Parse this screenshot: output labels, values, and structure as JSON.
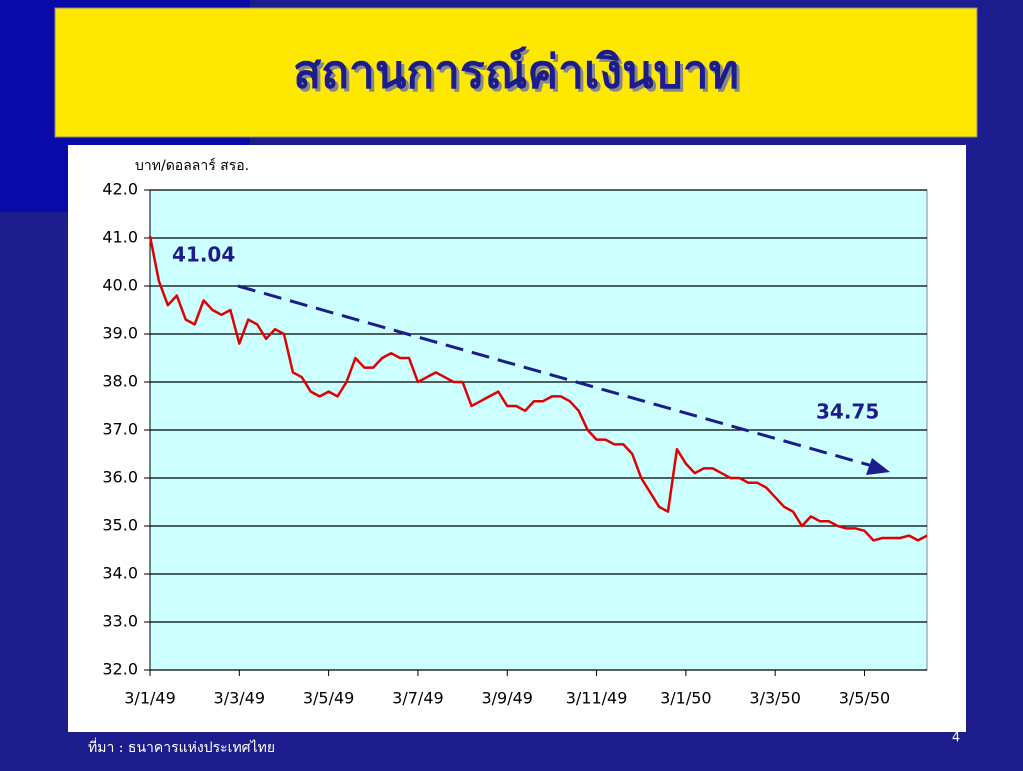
{
  "chart_data": {
    "type": "line",
    "title": "สถานการณ์ค่าเงินบาท",
    "y_label": "บาท/ดอลลาร์ สรอ.",
    "annotations": [
      "41.04",
      "34.75"
    ],
    "categories": [
      "3/1/49",
      null,
      null,
      null,
      null,
      null,
      null,
      null,
      null,
      null,
      "3/3/49",
      null,
      null,
      null,
      null,
      null,
      null,
      null,
      null,
      null,
      "3/5/49",
      null,
      null,
      null,
      null,
      null,
      null,
      null,
      null,
      null,
      "3/7/49",
      null,
      null,
      null,
      null,
      null,
      null,
      null,
      null,
      null,
      "3/9/49",
      null,
      null,
      null,
      null,
      null,
      null,
      null,
      null,
      null,
      "3/11/49",
      null,
      null,
      null,
      null,
      null,
      null,
      null,
      null,
      null,
      "3/1/50",
      null,
      null,
      null,
      null,
      null,
      null,
      null,
      null,
      null,
      "3/3/50",
      null,
      null,
      null,
      null,
      null,
      null,
      null,
      null,
      null,
      "3/5/50",
      null,
      null,
      null,
      null,
      null,
      null,
      null
    ],
    "series": [
      {
        "color": "#e00000",
        "values": [
          41.04,
          40.1,
          39.6,
          39.8,
          39.3,
          39.2,
          39.7,
          39.5,
          39.4,
          39.5,
          38.8,
          39.3,
          39.2,
          38.9,
          39.1,
          39.0,
          38.2,
          38.1,
          37.8,
          37.7,
          37.8,
          37.7,
          38.0,
          38.5,
          38.3,
          38.3,
          38.5,
          38.6,
          38.5,
          38.5,
          38.0,
          38.1,
          38.2,
          38.1,
          38.0,
          38.0,
          37.5,
          37.6,
          37.7,
          37.8,
          37.5,
          37.5,
          37.4,
          37.6,
          37.6,
          37.7,
          37.7,
          37.6,
          37.4,
          37.0,
          36.8,
          36.8,
          36.7,
          36.7,
          36.5,
          36.0,
          35.7,
          35.4,
          35.3,
          36.6,
          36.3,
          36.1,
          36.2,
          36.2,
          36.1,
          36.0,
          36.0,
          35.9,
          35.9,
          35.8,
          35.6,
          35.4,
          35.3,
          35.0,
          35.2,
          35.1,
          35.1,
          35.0,
          34.95,
          34.95,
          34.9,
          34.7,
          34.75,
          34.75,
          34.75,
          34.8,
          34.7,
          34.8
        ]
      }
    ],
    "ylim": [
      32,
      42
    ],
    "yticks": [
      {
        "value": 32,
        "label": "32.0"
      },
      {
        "value": 33,
        "label": "33.0"
      },
      {
        "value": 34,
        "label": "34.0"
      },
      {
        "value": 35,
        "label": "35.0"
      },
      {
        "value": 36,
        "label": "36.0"
      },
      {
        "value": 37,
        "label": "37.0"
      },
      {
        "value": 38,
        "label": "38.0"
      },
      {
        "value": 39,
        "label": "39.0"
      },
      {
        "value": 40,
        "label": "40.0"
      },
      {
        "value": 41,
        "label": "41.0"
      },
      {
        "value": 42,
        "label": "42.0"
      }
    ],
    "grid": true
  },
  "source": "ที่มา :  ธนาคารแห่งประเทศไทย",
  "page_number": "4"
}
